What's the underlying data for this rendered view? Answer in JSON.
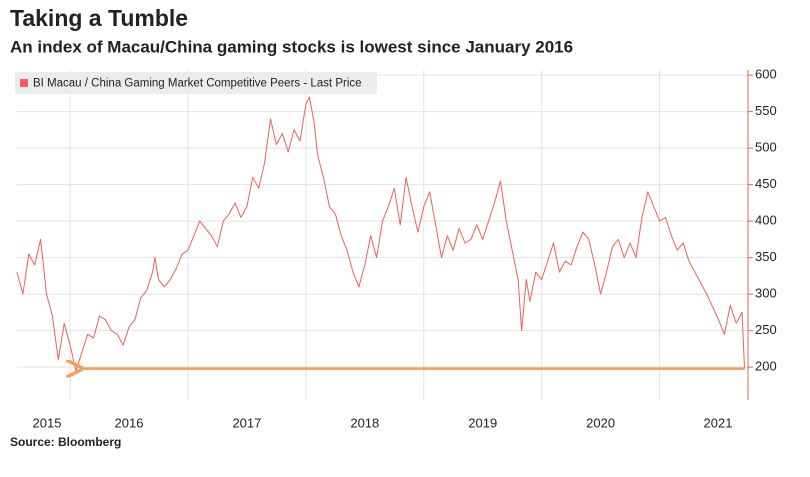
{
  "chart_data": {
    "type": "line",
    "title": "Taking a Tumble",
    "subtitle": "An index of Macau/China gaming stocks is lowest since January 2016",
    "source": "Source: Bloomberg",
    "legend": "top-left",
    "grid": true,
    "x": [
      2015.55,
      2015.6,
      2015.65,
      2015.7,
      2015.75,
      2015.8,
      2015.85,
      2015.9,
      2015.95,
      2016.0,
      2016.05,
      2016.1,
      2016.15,
      2016.2,
      2016.25,
      2016.3,
      2016.35,
      2016.4,
      2016.45,
      2016.5,
      2016.55,
      2016.6,
      2016.65,
      2016.7,
      2016.72,
      2016.75,
      2016.8,
      2016.85,
      2016.9,
      2016.95,
      2017.0,
      2017.05,
      2017.1,
      2017.15,
      2017.2,
      2017.25,
      2017.3,
      2017.35,
      2017.4,
      2017.45,
      2017.5,
      2017.55,
      2017.6,
      2017.65,
      2017.7,
      2017.75,
      2017.8,
      2017.85,
      2017.9,
      2017.95,
      2018.0,
      2018.03,
      2018.07,
      2018.1,
      2018.15,
      2018.2,
      2018.25,
      2018.3,
      2018.35,
      2018.4,
      2018.45,
      2018.5,
      2018.55,
      2018.6,
      2018.65,
      2018.7,
      2018.75,
      2018.8,
      2018.85,
      2018.9,
      2018.95,
      2019.0,
      2019.05,
      2019.1,
      2019.15,
      2019.2,
      2019.25,
      2019.3,
      2019.35,
      2019.4,
      2019.45,
      2019.5,
      2019.55,
      2019.6,
      2019.65,
      2019.7,
      2019.75,
      2019.8,
      2019.83,
      2019.87,
      2019.9,
      2019.95,
      2020.0,
      2020.05,
      2020.1,
      2020.15,
      2020.2,
      2020.25,
      2020.3,
      2020.35,
      2020.4,
      2020.45,
      2020.5,
      2020.55,
      2020.6,
      2020.65,
      2020.7,
      2020.75,
      2020.8,
      2020.85,
      2020.9,
      2020.95,
      2021.0,
      2021.05,
      2021.1,
      2021.15,
      2021.2,
      2021.25,
      2021.3,
      2021.4,
      2021.5,
      2021.55,
      2021.6,
      2021.65,
      2021.7,
      2021.72
    ],
    "series": [
      {
        "name": "BI Macau / China Gaming Market Competitive Peers - Last Price",
        "color": "#f0605a",
        "values": [
          330,
          300,
          355,
          340,
          375,
          300,
          270,
          210,
          260,
          230,
          195,
          220,
          245,
          240,
          270,
          265,
          250,
          245,
          230,
          255,
          265,
          295,
          305,
          330,
          350,
          320,
          310,
          320,
          335,
          355,
          360,
          380,
          400,
          390,
          380,
          365,
          400,
          410,
          425,
          405,
          420,
          460,
          445,
          480,
          540,
          505,
          520,
          495,
          525,
          510,
          560,
          570,
          535,
          490,
          460,
          420,
          410,
          380,
          360,
          330,
          310,
          340,
          380,
          350,
          400,
          420,
          445,
          395,
          460,
          420,
          385,
          420,
          440,
          395,
          350,
          380,
          360,
          390,
          370,
          375,
          395,
          375,
          400,
          425,
          455,
          400,
          360,
          320,
          250,
          320,
          290,
          330,
          320,
          345,
          370,
          330,
          345,
          340,
          365,
          385,
          375,
          340,
          300,
          330,
          365,
          375,
          350,
          370,
          350,
          405,
          440,
          420,
          400,
          405,
          380,
          360,
          370,
          345,
          330,
          300,
          265,
          245,
          285,
          260,
          275,
          198
        ]
      }
    ],
    "annotation": {
      "y": 198,
      "x": [
        2016.1,
        2021.72
      ],
      "color": "#f5a05a"
    },
    "xlim": [
      2015.55,
      2021.75
    ],
    "xticks": [
      2015,
      2016,
      2017,
      2018,
      2019,
      2020,
      2021
    ],
    "ylim": [
      155,
      607
    ],
    "yticks": [
      200,
      250,
      300,
      350,
      400,
      450,
      500,
      550,
      600
    ]
  }
}
